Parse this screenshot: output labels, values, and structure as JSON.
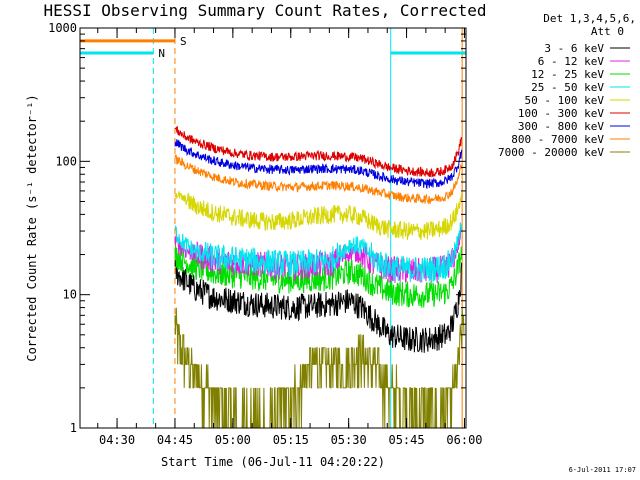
{
  "chart_data": {
    "type": "line",
    "title": "HESSI Observing Summary Count Rates, Corrected",
    "xlabel": "Start Time (06-Jul-11 04:20:22)",
    "ylabel": "Corrected Count Rate (s⁻¹ detector⁻¹)",
    "x_unit": "minutes after 04:20:22 UT",
    "xlim": [
      0,
      100
    ],
    "ylim": [
      1,
      1000
    ],
    "yscale": "log",
    "x_ticks": [
      {
        "value": 9.6,
        "label": "04:30"
      },
      {
        "value": 24.6,
        "label": "04:45"
      },
      {
        "value": 39.6,
        "label": "05:00"
      },
      {
        "value": 54.6,
        "label": "05:15"
      },
      {
        "value": 69.6,
        "label": "05:30"
      },
      {
        "value": 84.6,
        "label": "05:45"
      },
      {
        "value": 99.6,
        "label": "06:00"
      }
    ],
    "y_ticks": [
      {
        "value": 1,
        "label": "1"
      },
      {
        "value": 10,
        "label": "10"
      },
      {
        "value": 100,
        "label": "100"
      },
      {
        "value": 1000,
        "label": "1000"
      }
    ],
    "legend_header": [
      "Det 1,3,4,5,6,",
      "Att 0"
    ],
    "legend_position": "top-right, outside plot",
    "series": [
      {
        "name": "3 - 6 keV",
        "color": "#000000",
        "x": [
          24.6,
          27,
          30,
          35,
          40,
          45,
          50,
          55,
          60,
          65,
          70,
          73,
          76,
          80,
          85,
          90,
          93,
          95,
          96.5,
          98,
          99
        ],
        "y": [
          15,
          13,
          11,
          9.5,
          9,
          8.5,
          8.2,
          8,
          8.2,
          8.5,
          9,
          8,
          6.5,
          5,
          4.6,
          4.6,
          4.8,
          5,
          6,
          9,
          16
        ]
      },
      {
        "name": "6 - 12 keV",
        "color": "#e020e0",
        "x": [
          24.6,
          27,
          30,
          35,
          40,
          45,
          50,
          55,
          60,
          65,
          70,
          73,
          76,
          80,
          85,
          90,
          93,
          95,
          96.5,
          98,
          99
        ],
        "y": [
          25,
          22,
          20,
          18,
          17.5,
          17,
          16.5,
          16,
          16.5,
          17,
          21,
          20,
          17,
          15.5,
          15,
          15,
          15.5,
          16,
          18,
          24,
          32
        ]
      },
      {
        "name": "12 - 25 keV",
        "color": "#00dd00",
        "x": [
          24.6,
          27,
          30,
          35,
          40,
          45,
          50,
          55,
          60,
          65,
          70,
          73,
          76,
          80,
          85,
          90,
          93,
          95,
          96.5,
          98,
          99
        ],
        "y": [
          20,
          18,
          16,
          14.5,
          14,
          13.5,
          13,
          12.8,
          13,
          13.5,
          15,
          14,
          12,
          10.5,
          10,
          10,
          10.2,
          10.5,
          12,
          16,
          22
        ]
      },
      {
        "name": "25 - 50 keV",
        "color": "#00e5ee",
        "x": [
          24.6,
          27,
          30,
          35,
          40,
          45,
          50,
          55,
          60,
          65,
          70,
          73,
          76,
          80,
          85,
          90,
          93,
          95,
          96.5,
          98,
          99
        ],
        "y": [
          30,
          24,
          21,
          19,
          18.5,
          18,
          17.5,
          17,
          17.5,
          18,
          24,
          23,
          19,
          16,
          15.5,
          15.5,
          16,
          16.5,
          19,
          25,
          35
        ]
      },
      {
        "name": "50 - 100 keV",
        "color": "#d6d600",
        "x": [
          24.6,
          27,
          30,
          35,
          40,
          45,
          50,
          55,
          60,
          65,
          70,
          73,
          76,
          80,
          85,
          90,
          93,
          95,
          96.5,
          98,
          99
        ],
        "y": [
          58,
          52,
          46,
          41,
          38,
          36,
          35,
          36,
          38,
          40,
          40,
          38,
          34,
          31,
          30,
          30,
          31,
          33,
          36,
          44,
          60
        ]
      },
      {
        "name": "100 - 300 keV",
        "color": "#dd0000",
        "x": [
          24.6,
          27,
          30,
          35,
          40,
          45,
          50,
          55,
          60,
          65,
          70,
          73,
          76,
          80,
          85,
          90,
          93,
          95,
          96.5,
          98,
          99
        ],
        "y": [
          175,
          155,
          140,
          125,
          115,
          110,
          108,
          108,
          110,
          110,
          108,
          105,
          98,
          90,
          85,
          82,
          83,
          87,
          95,
          118,
          155
        ]
      },
      {
        "name": "300 - 800 keV",
        "color": "#0000dd",
        "x": [
          24.6,
          27,
          30,
          35,
          40,
          45,
          50,
          55,
          60,
          65,
          70,
          73,
          76,
          80,
          85,
          90,
          93,
          95,
          96.5,
          98,
          99
        ],
        "y": [
          140,
          125,
          113,
          100,
          93,
          89,
          87,
          86,
          88,
          88,
          87,
          85,
          80,
          74,
          70,
          68,
          69,
          72,
          78,
          95,
          125
        ]
      },
      {
        "name": "800 - 7000 keV",
        "color": "#ff7f00",
        "x": [
          24.6,
          27,
          30,
          35,
          40,
          45,
          50,
          55,
          60,
          65,
          70,
          73,
          76,
          80,
          85,
          90,
          93,
          95,
          96.5,
          98,
          99
        ],
        "y": [
          105,
          95,
          86,
          76,
          70,
          67,
          65,
          64,
          65,
          66,
          65,
          63,
          60,
          56,
          53,
          52,
          53,
          55,
          60,
          74,
          100
        ]
      },
      {
        "name": "7000 - 20000 keV",
        "color": "#808000",
        "x": [
          24.6,
          26,
          28,
          30,
          33,
          36,
          40,
          45,
          50,
          55,
          58,
          60,
          65,
          70,
          72,
          75,
          78,
          80,
          85,
          90,
          93,
          95,
          97,
          98.5,
          99.5
        ],
        "y": [
          6,
          4,
          3,
          2.5,
          2,
          1.5,
          1.3,
          1.2,
          1.3,
          1.8,
          2.5,
          3,
          3,
          3,
          4,
          3,
          2.5,
          2,
          1.5,
          1.3,
          1.3,
          1.5,
          2,
          4,
          8
        ]
      }
    ],
    "flags": [
      {
        "label": "S",
        "color": "#ff7f00",
        "x_start": 0,
        "x_end": 24.6,
        "level": 800
      },
      {
        "label": "N",
        "color": "#00e5ee",
        "x_start": 0,
        "x_end": 19,
        "level": 650
      },
      {
        "label": "",
        "color": "#00e5ee",
        "x_start": 80.5,
        "x_end": 100,
        "level": 650
      }
    ],
    "markers": [
      {
        "x": 0,
        "color": "#00e5ee",
        "style": "solid"
      },
      {
        "x": 19,
        "color": "#00e5ee",
        "style": "dashed"
      },
      {
        "x": 24.6,
        "color": "#ff7f00",
        "style": "dashed"
      },
      {
        "x": 80.5,
        "color": "#00e5ee",
        "style": "solid"
      },
      {
        "x": 99,
        "color": "#ff7f00",
        "style": "solid"
      },
      {
        "x": 100,
        "color": "#00e5ee",
        "style": "dashed"
      }
    ],
    "grid": false,
    "data_start": 24.6,
    "data_end": 99.5
  },
  "timestamp": "6-Jul-2011 17:07"
}
